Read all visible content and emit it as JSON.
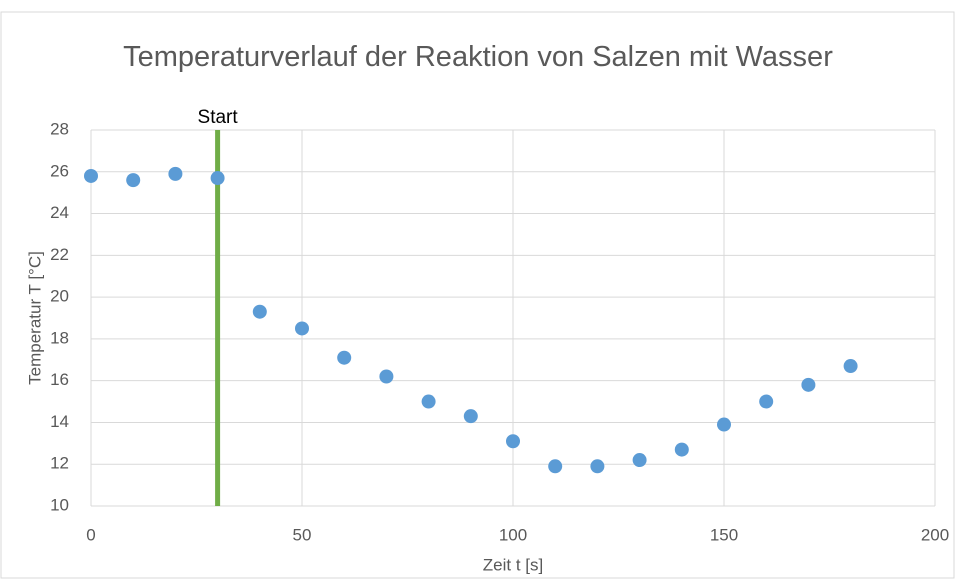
{
  "chart_data": {
    "type": "scatter",
    "title": "Temperaturverlauf der Reaktion von Salzen mit Wasser",
    "x_label": "Zeit t [s]",
    "y_label": "Temperatur T [°C]",
    "x": [
      0,
      10,
      20,
      30,
      40,
      50,
      60,
      70,
      80,
      90,
      100,
      110,
      120,
      130,
      140,
      150,
      160,
      170,
      180
    ],
    "series": [
      {
        "color": "#5b9bd5",
        "values": [
          25.8,
          25.6,
          25.9,
          25.7,
          19.3,
          18.5,
          17.1,
          16.2,
          15.0,
          14.3,
          13.1,
          11.9,
          11.9,
          12.2,
          12.7,
          13.9,
          15.0,
          15.8,
          16.7
        ]
      }
    ],
    "xlim": [
      0,
      200
    ],
    "xticks": [
      0,
      50,
      100,
      150,
      200
    ],
    "ylim": [
      10,
      28
    ],
    "yticks": [
      10,
      12,
      14,
      16,
      18,
      20,
      22,
      24,
      26,
      28
    ],
    "grid": true,
    "annotations": [
      {
        "text": "Start",
        "x": 30,
        "color": "#70ad47"
      }
    ]
  }
}
